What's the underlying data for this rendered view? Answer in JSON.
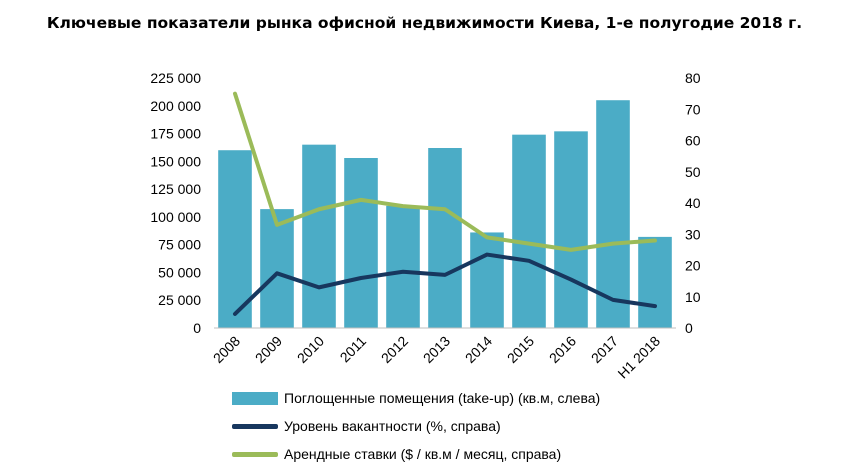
{
  "title": "Ключевые показатели рынка офисной недвижимости Киева, 1-е полугодие 2018 г.",
  "chart_data": {
    "type": "bar",
    "categories": [
      "2008",
      "2009",
      "2010",
      "2011",
      "2012",
      "2013",
      "2014",
      "2015",
      "2016",
      "2017",
      "H1 2018"
    ],
    "y_left": {
      "ylim": [
        0,
        225000
      ],
      "tick_labels": [
        "0",
        "25 000",
        "50 000",
        "75 000",
        "100 000",
        "125 000",
        "150 000",
        "175 000",
        "200 000",
        "225 000"
      ]
    },
    "y_right": {
      "ylim": [
        0,
        80
      ],
      "tick_labels": [
        "0",
        "10",
        "20",
        "30",
        "40",
        "50",
        "60",
        "70",
        "80"
      ]
    },
    "series": [
      {
        "name": "Поглощенные помещения (take-up) (кв.м, слева)",
        "type": "bar",
        "axis": "left",
        "color": "#4BACC6",
        "values": [
          160000,
          107000,
          165000,
          153000,
          110000,
          162000,
          86000,
          174000,
          177000,
          205000,
          82000
        ]
      },
      {
        "name": "Уровень вакантности (%, справа)",
        "type": "line",
        "axis": "right",
        "color": "#17375E",
        "values": [
          4.5,
          17.5,
          13,
          16,
          18,
          17,
          23.5,
          21.5,
          15.5,
          9,
          7
        ]
      },
      {
        "name": "Арендные ставки  ($ / кв.м / месяц, справа)",
        "type": "line",
        "axis": "right",
        "color": "#9BBB59",
        "values": [
          75,
          33,
          38,
          41,
          39,
          38,
          29,
          27,
          25,
          27,
          28
        ]
      }
    ],
    "grid": false,
    "legend_position": "bottom"
  }
}
